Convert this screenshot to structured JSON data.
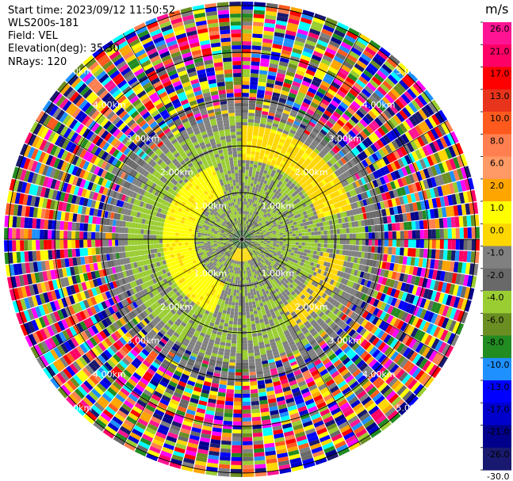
{
  "info": {
    "start_time": "Start time: 2023/09/12 11:50:52",
    "instrument": "WLS200s-181",
    "field": "Field: VEL",
    "elevation": "Elevation(deg): 35.30",
    "nrays": "NRays: 120"
  },
  "colorbar": {
    "unit": "m/s",
    "labels": [
      "26.0",
      "21.0",
      "17.0",
      "13.0",
      "10.0",
      "8.0",
      "6.0",
      "2.0",
      "1.0",
      "0.0",
      "-1.0",
      "-2.0",
      "-4.0",
      "-6.0",
      "-8.0",
      "-10.0",
      "-13.0",
      "-17.0",
      "-21.0",
      "-26.0",
      "-30.0"
    ],
    "colors": [
      "#ff1493",
      "#ff0066",
      "#ff0000",
      "#e8341c",
      "#ff5a1e",
      "#ff7f50",
      "#ff9966",
      "#ffa500",
      "#ffff00",
      "#ffd700",
      "#808080",
      "#696969",
      "#9acd32",
      "#6b8e23",
      "#228b22",
      "#1e90ff",
      "#0000ff",
      "#0000cd",
      "#00008b",
      "#191970"
    ]
  },
  "chart_data": {
    "type": "heatmap",
    "projection": "polar-ppi",
    "field": "VEL",
    "units": "m/s",
    "nrays": 120,
    "value_range": [
      -30,
      26
    ],
    "range_rings_km": [
      1.0,
      2.0,
      3.0,
      4.0,
      5.0
    ],
    "range_ring_labels": [
      "1.00km",
      "2.00km",
      "3.00km",
      "4.00km",
      "5.00km"
    ],
    "radial_velocity_profile": [
      {
        "range_km": 0.3,
        "value": 0.5
      },
      {
        "range_km": 0.6,
        "value": -1.5
      },
      {
        "range_km": 1.0,
        "value": 1.5
      },
      {
        "range_km": 1.5,
        "value": -1.5
      },
      {
        "range_km": 2.0,
        "value": 0.0
      },
      {
        "range_km": 2.5,
        "value": -1.0
      },
      {
        "range_km": 3.0,
        "value": "noise"
      },
      {
        "range_km": 5.5,
        "value": "noise"
      }
    ]
  }
}
